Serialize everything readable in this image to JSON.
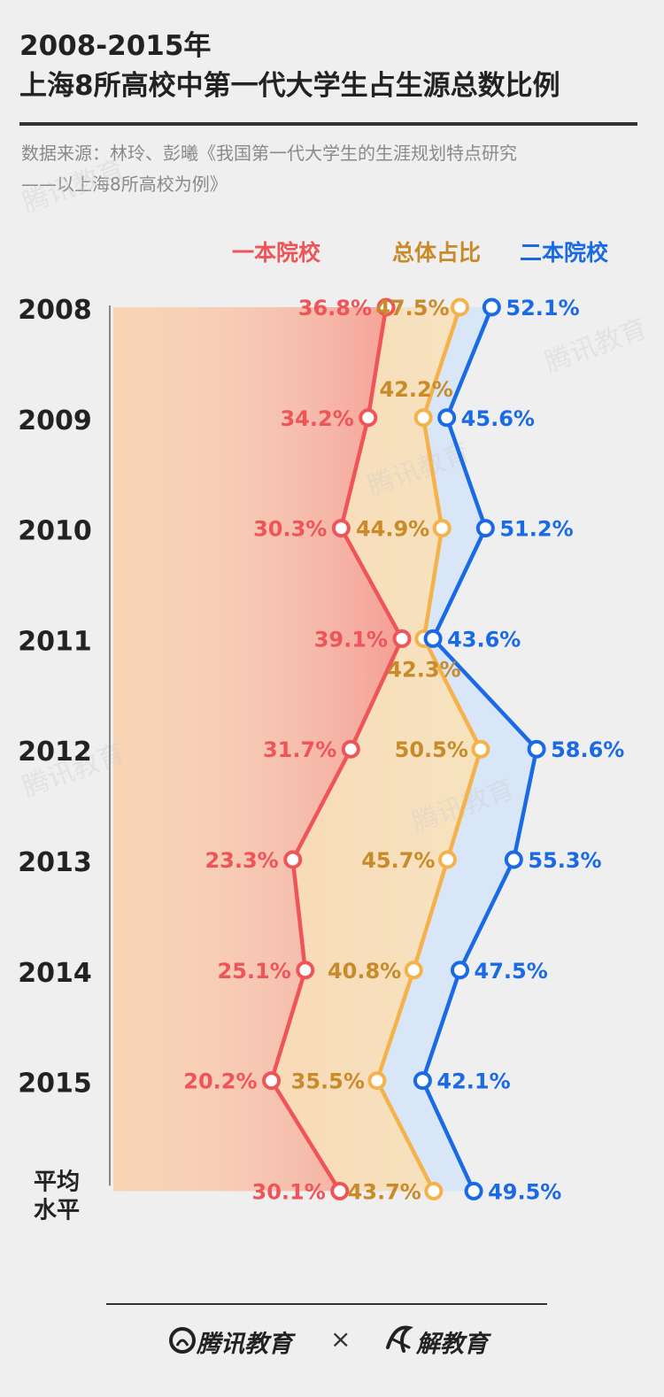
{
  "title_line1": "2008-2015年",
  "title_line2": "上海8所高校中第一代大学生占生源总数比例",
  "source_line1": "数据来源：林玲、彭曦《我国第一代大学生的生涯规划特点研究",
  "source_line2": "——以上海8所高校为例》",
  "watermark": "腾讯教育",
  "footer": {
    "brand_left": "腾讯教育",
    "times": "×",
    "brand_right": "解教育",
    "logo_left_icon": "tencent-education-logo-icon",
    "logo_right_icon": "jie-education-logo-icon"
  },
  "colors": {
    "red": "#ef5459",
    "orange": "#f5b24b",
    "orange_text": "#c98a2a",
    "blue": "#1a6ae6"
  },
  "chart_data": {
    "type": "line",
    "orientation": "vertical",
    "categories": [
      "2008",
      "2009",
      "2010",
      "2011",
      "2012",
      "2013",
      "2014",
      "2015",
      "平均水平"
    ],
    "avg_label_lines": [
      "平均",
      "水平"
    ],
    "series": [
      {
        "name": "一本院校",
        "values": [
          36.8,
          34.2,
          30.3,
          39.1,
          31.7,
          23.3,
          25.1,
          20.2,
          30.1
        ],
        "labels": [
          "36.8%",
          "34.2%",
          "30.3%",
          "39.1%",
          "31.7%",
          "23.3%",
          "25.1%",
          "20.2%",
          "30.1%"
        ]
      },
      {
        "name": "总体占比",
        "values": [
          47.5,
          42.2,
          44.9,
          42.3,
          50.5,
          45.7,
          40.8,
          35.5,
          43.7
        ],
        "labels": [
          "47.5%",
          "42.2%",
          "44.9%",
          "42.3%",
          "50.5%",
          "45.7%",
          "40.8%",
          "35.5%",
          "43.7%"
        ]
      },
      {
        "name": "二本院校",
        "values": [
          52.1,
          45.6,
          51.2,
          43.6,
          58.6,
          55.3,
          47.5,
          42.1,
          49.5
        ],
        "labels": [
          "52.1%",
          "45.6%",
          "51.2%",
          "43.6%",
          "58.6%",
          "55.3%",
          "47.5%",
          "42.1%",
          "49.5%"
        ]
      }
    ],
    "value_unit": "%",
    "legend_position": "top"
  }
}
